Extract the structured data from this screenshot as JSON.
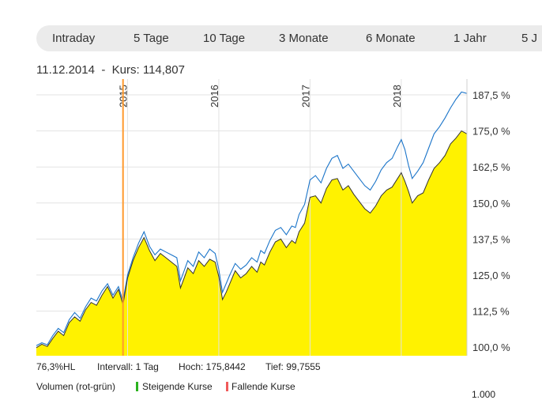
{
  "tabs": [
    {
      "label": "Intraday"
    },
    {
      "label": "5 Tage"
    },
    {
      "label": "10 Tage"
    },
    {
      "label": "3 Monate"
    },
    {
      "label": "6 Monate"
    },
    {
      "label": "1 Jahr"
    },
    {
      "label": "5 J"
    }
  ],
  "header": {
    "date": "11.12.2014",
    "separator": "-",
    "price_text": "Kurs: 114,807"
  },
  "stats": {
    "hl": "76,3%HL",
    "interval": "Intervall: 1 Tag",
    "high": "Hoch: 175,8442",
    "low": "Tief: 99,7555"
  },
  "volume_legend": {
    "title": "Volumen (rot-grün)",
    "rising": "Steigende Kurse",
    "falling": "Fallende Kurse",
    "rising_color": "#2bb21e",
    "falling_color": "#f05a5a",
    "axis_tick": "1.000"
  },
  "chart_data": {
    "type": "area",
    "x_axis": {
      "unit": "year",
      "range": [
        2014.0,
        2018.72
      ],
      "ticks": [
        2015,
        2016,
        2017,
        2018
      ],
      "tick_labels": [
        "2015",
        "2016",
        "2017",
        "2018"
      ]
    },
    "y_axis": {
      "unit": "percent",
      "range": [
        97,
        193
      ],
      "ticks": [
        100.0,
        112.5,
        125.0,
        137.5,
        150.0,
        162.5,
        175.0,
        187.5
      ],
      "tick_labels": [
        "100,0 %",
        "112,5 %",
        "125,0 %",
        "137,5 %",
        "150,0 %",
        "162,5 %",
        "175,0 %",
        "187,5 %"
      ]
    },
    "grid": true,
    "crosshair_x": 2014.95,
    "colors": {
      "area_fill": "#fff200",
      "main_line": "#333333",
      "compare_line": "#1a74c9",
      "crosshair": "#ff9a2e",
      "grid": "#e3e3e3"
    },
    "series": [
      {
        "role": "main",
        "x": [
          2014.0,
          2014.06,
          2014.12,
          2014.18,
          2014.24,
          2014.3,
          2014.36,
          2014.42,
          2014.48,
          2014.54,
          2014.6,
          2014.66,
          2014.72,
          2014.78,
          2014.84,
          2014.9,
          2014.95,
          2015.0,
          2015.06,
          2015.12,
          2015.18,
          2015.24,
          2015.3,
          2015.36,
          2015.42,
          2015.48,
          2015.54,
          2015.58,
          2015.62,
          2015.66,
          2015.72,
          2015.78,
          2015.84,
          2015.9,
          2015.96,
          2016.0,
          2016.04,
          2016.08,
          2016.12,
          2016.18,
          2016.24,
          2016.3,
          2016.36,
          2016.42,
          2016.46,
          2016.5,
          2016.56,
          2016.62,
          2016.68,
          2016.74,
          2016.8,
          2016.84,
          2016.88,
          2016.94,
          2017.0,
          2017.06,
          2017.12,
          2017.18,
          2017.24,
          2017.3,
          2017.36,
          2017.42,
          2017.48,
          2017.54,
          2017.6,
          2017.66,
          2017.72,
          2017.78,
          2017.84,
          2017.9,
          2017.96,
          2018.0,
          2018.04,
          2018.08,
          2018.12,
          2018.18,
          2018.24,
          2018.3,
          2018.36,
          2018.42,
          2018.48,
          2018.54,
          2018.6,
          2018.66,
          2018.72
        ],
        "y": [
          99.8,
          101.0,
          100.2,
          103.0,
          105.5,
          104.0,
          108.5,
          110.5,
          109.0,
          113.0,
          115.5,
          114.5,
          118.0,
          121.0,
          117.0,
          120.0,
          114.8,
          124.0,
          130.0,
          134.5,
          138.0,
          133.5,
          130.0,
          132.5,
          131.0,
          129.5,
          128.0,
          120.5,
          124.0,
          127.5,
          125.5,
          130.0,
          128.0,
          130.5,
          129.5,
          124.5,
          116.5,
          119.0,
          122.0,
          126.5,
          124.0,
          125.5,
          128.0,
          126.0,
          129.5,
          128.5,
          133.0,
          136.5,
          137.5,
          134.5,
          137.0,
          136.0,
          140.0,
          143.0,
          152.0,
          152.5,
          150.0,
          155.0,
          158.0,
          158.5,
          154.5,
          156.0,
          153.0,
          150.5,
          148.0,
          146.5,
          149.0,
          152.5,
          154.5,
          155.5,
          158.5,
          160.5,
          157.5,
          154.0,
          150.0,
          152.5,
          153.5,
          158.0,
          162.0,
          164.0,
          166.5,
          170.5,
          172.5,
          175.0,
          174.0
        ]
      },
      {
        "role": "compare",
        "x": [
          2014.0,
          2014.06,
          2014.12,
          2014.18,
          2014.24,
          2014.3,
          2014.36,
          2014.42,
          2014.48,
          2014.54,
          2014.6,
          2014.66,
          2014.72,
          2014.78,
          2014.84,
          2014.9,
          2014.95,
          2015.0,
          2015.06,
          2015.12,
          2015.18,
          2015.24,
          2015.3,
          2015.36,
          2015.42,
          2015.48,
          2015.54,
          2015.58,
          2015.62,
          2015.66,
          2015.72,
          2015.78,
          2015.84,
          2015.9,
          2015.96,
          2016.0,
          2016.04,
          2016.08,
          2016.12,
          2016.18,
          2016.24,
          2016.3,
          2016.36,
          2016.42,
          2016.46,
          2016.5,
          2016.56,
          2016.62,
          2016.68,
          2016.74,
          2016.8,
          2016.84,
          2016.88,
          2016.94,
          2017.0,
          2017.06,
          2017.12,
          2017.18,
          2017.24,
          2017.3,
          2017.36,
          2017.42,
          2017.48,
          2017.54,
          2017.6,
          2017.66,
          2017.72,
          2017.78,
          2017.84,
          2017.9,
          2017.96,
          2018.0,
          2018.04,
          2018.08,
          2018.12,
          2018.18,
          2018.24,
          2018.3,
          2018.36,
          2018.42,
          2018.48,
          2018.54,
          2018.6,
          2018.66,
          2018.72
        ],
        "y": [
          100.5,
          101.5,
          100.8,
          104.0,
          106.5,
          105.0,
          109.5,
          112.0,
          110.0,
          114.0,
          117.0,
          116.0,
          119.5,
          122.0,
          118.0,
          121.0,
          116.0,
          125.0,
          131.0,
          136.0,
          140.0,
          135.0,
          132.0,
          134.0,
          133.0,
          132.0,
          131.0,
          123.0,
          126.5,
          130.0,
          128.0,
          133.0,
          131.0,
          134.0,
          132.5,
          127.0,
          119.0,
          122.0,
          125.0,
          129.0,
          127.0,
          128.5,
          131.0,
          129.5,
          133.5,
          132.5,
          137.0,
          140.5,
          141.5,
          139.0,
          142.0,
          141.5,
          146.0,
          149.5,
          158.0,
          159.5,
          157.0,
          162.0,
          165.5,
          166.5,
          162.0,
          163.5,
          161.0,
          158.5,
          156.0,
          154.5,
          157.5,
          161.5,
          164.0,
          165.5,
          169.5,
          172.0,
          168.5,
          163.0,
          158.5,
          161.0,
          164.0,
          169.0,
          174.0,
          176.5,
          179.5,
          183.0,
          186.0,
          188.5,
          188.0
        ]
      }
    ]
  }
}
